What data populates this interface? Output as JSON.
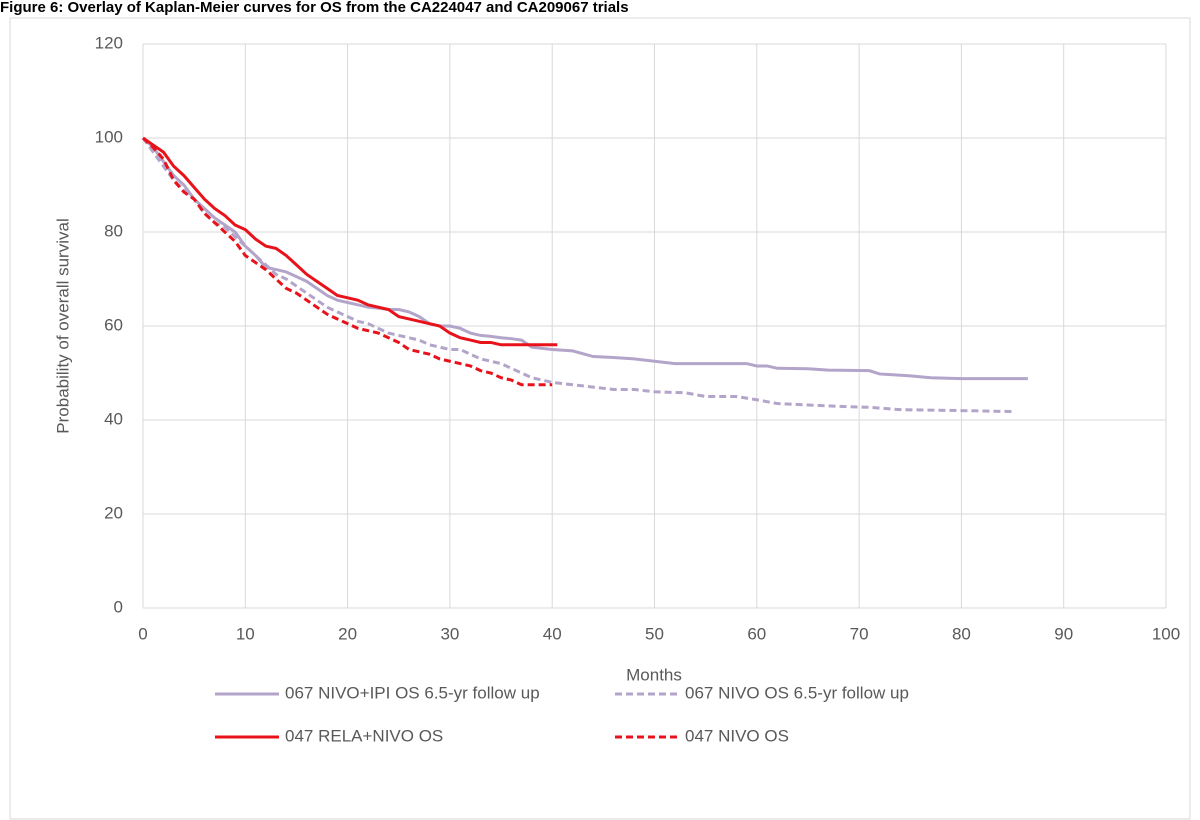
{
  "chart_data": {
    "type": "line",
    "title": "Figure 6: Overlay of Kaplan-Meier curves for OS from the CA224047 and CA209067 trials",
    "x_label": "Months",
    "y_label": "Probability of overall survival",
    "xlim": [
      0,
      100
    ],
    "xticks": [
      0,
      10,
      20,
      30,
      40,
      50,
      60,
      70,
      80,
      90,
      100
    ],
    "ylim": [
      0,
      120
    ],
    "yticks": [
      0,
      20,
      40,
      60,
      80,
      100,
      120
    ],
    "grid": true,
    "legend": "bottom",
    "series": [
      {
        "name": "067 NIVO+IPI OS 6.5-yr follow up",
        "color": "#b3a5c9",
        "dashed": false,
        "x": [
          0,
          1,
          2,
          3,
          4,
          5,
          6,
          7,
          8,
          9,
          10,
          11,
          12,
          13,
          14,
          15,
          16,
          17,
          18,
          19,
          20,
          21,
          22,
          23,
          24,
          25,
          26,
          27,
          28,
          29,
          30,
          31,
          32,
          33,
          34,
          35,
          36,
          37,
          38,
          40,
          42,
          44,
          46,
          48,
          50,
          52,
          55,
          59,
          60,
          61,
          62,
          65,
          67,
          71,
          72,
          75,
          77,
          80,
          86.5
        ],
        "values": [
          100,
          98,
          95,
          92,
          90,
          87,
          85,
          83,
          81.5,
          80,
          77,
          75,
          72.5,
          72,
          71.5,
          70.5,
          69.5,
          68,
          66.5,
          65.5,
          65,
          64.5,
          64,
          63.8,
          63.5,
          63.5,
          63,
          62,
          60.5,
          60,
          60,
          59.5,
          58.5,
          58,
          57.8,
          57.5,
          57.3,
          57,
          55.5,
          55,
          54.7,
          53.5,
          53.3,
          53,
          52.5,
          52,
          52,
          52,
          51.5,
          51.5,
          51,
          50.9,
          50.6,
          50.5,
          49.8,
          49.4,
          49,
          48.8,
          48.8
        ]
      },
      {
        "name": "067 NIVO OS 6.5-yr follow up",
        "color": "#b3a5c9",
        "dashed": true,
        "x": [
          0,
          2,
          3,
          4,
          5,
          6,
          7,
          8,
          9,
          10,
          11,
          12,
          13,
          14,
          15,
          16,
          17,
          18,
          19,
          20,
          21,
          22,
          23,
          24,
          25,
          26,
          27,
          28,
          29,
          30,
          31,
          32,
          33,
          34,
          35,
          36,
          37,
          38,
          40,
          42,
          44,
          46,
          48,
          50,
          53,
          55,
          58,
          60,
          62,
          65,
          68,
          71,
          74,
          80,
          85
        ],
        "values": [
          100,
          94,
          91,
          89,
          87,
          84,
          82,
          81,
          79,
          77,
          75,
          73,
          71,
          70,
          68.5,
          67,
          65.5,
          64,
          63,
          62,
          61,
          60.5,
          59.5,
          58.5,
          58,
          57.5,
          57,
          56,
          55.5,
          55,
          55,
          54,
          53,
          52.5,
          52,
          51,
          50,
          49,
          48,
          47.5,
          47,
          46.5,
          46.5,
          46,
          45.8,
          45,
          45,
          44.3,
          43.5,
          43.2,
          42.9,
          42.7,
          42.2,
          42,
          41.8
        ]
      },
      {
        "name": "047 RELA+NIVO OS",
        "color": "#e8121b",
        "dashed": false,
        "x": [
          0,
          1,
          2,
          3,
          4,
          5,
          6,
          7,
          8,
          9,
          10,
          11,
          12,
          13,
          14,
          15,
          16,
          17,
          18,
          19,
          20,
          21,
          22,
          23,
          24,
          25,
          26,
          27,
          28,
          29,
          30,
          31,
          32,
          33,
          34,
          35,
          37,
          40.5
        ],
        "values": [
          100,
          98.5,
          97,
          94,
          92,
          89.5,
          87,
          85,
          83.5,
          81.5,
          80.5,
          78.5,
          77,
          76.5,
          75,
          73,
          71,
          69.5,
          68,
          66.5,
          66,
          65.5,
          64.5,
          64,
          63.5,
          62,
          61.5,
          61,
          60.5,
          60,
          58.5,
          57.5,
          57,
          56.5,
          56.5,
          56,
          56,
          56
        ]
      },
      {
        "name": "047 NIVO OS",
        "color": "#e8121b",
        "dashed": true,
        "x": [
          0,
          1,
          2,
          3,
          4,
          5,
          6,
          7,
          8,
          9,
          10,
          11,
          12,
          13,
          14,
          15,
          16,
          17,
          18,
          19,
          20,
          21,
          22,
          23,
          24,
          25,
          26,
          27,
          28,
          29,
          30,
          31,
          32,
          33,
          34,
          35,
          36,
          37,
          40
        ],
        "values": [
          100,
          98,
          95.5,
          91,
          88.5,
          87,
          84,
          82,
          80,
          78,
          75,
          73.5,
          72,
          70,
          68,
          67,
          65.5,
          64,
          62.5,
          61.5,
          60.5,
          59.5,
          59,
          58.5,
          57.5,
          56.5,
          55,
          54.5,
          54,
          53,
          52.5,
          52,
          51.5,
          50.5,
          50,
          49,
          48.5,
          47.5,
          47.5
        ]
      }
    ]
  }
}
